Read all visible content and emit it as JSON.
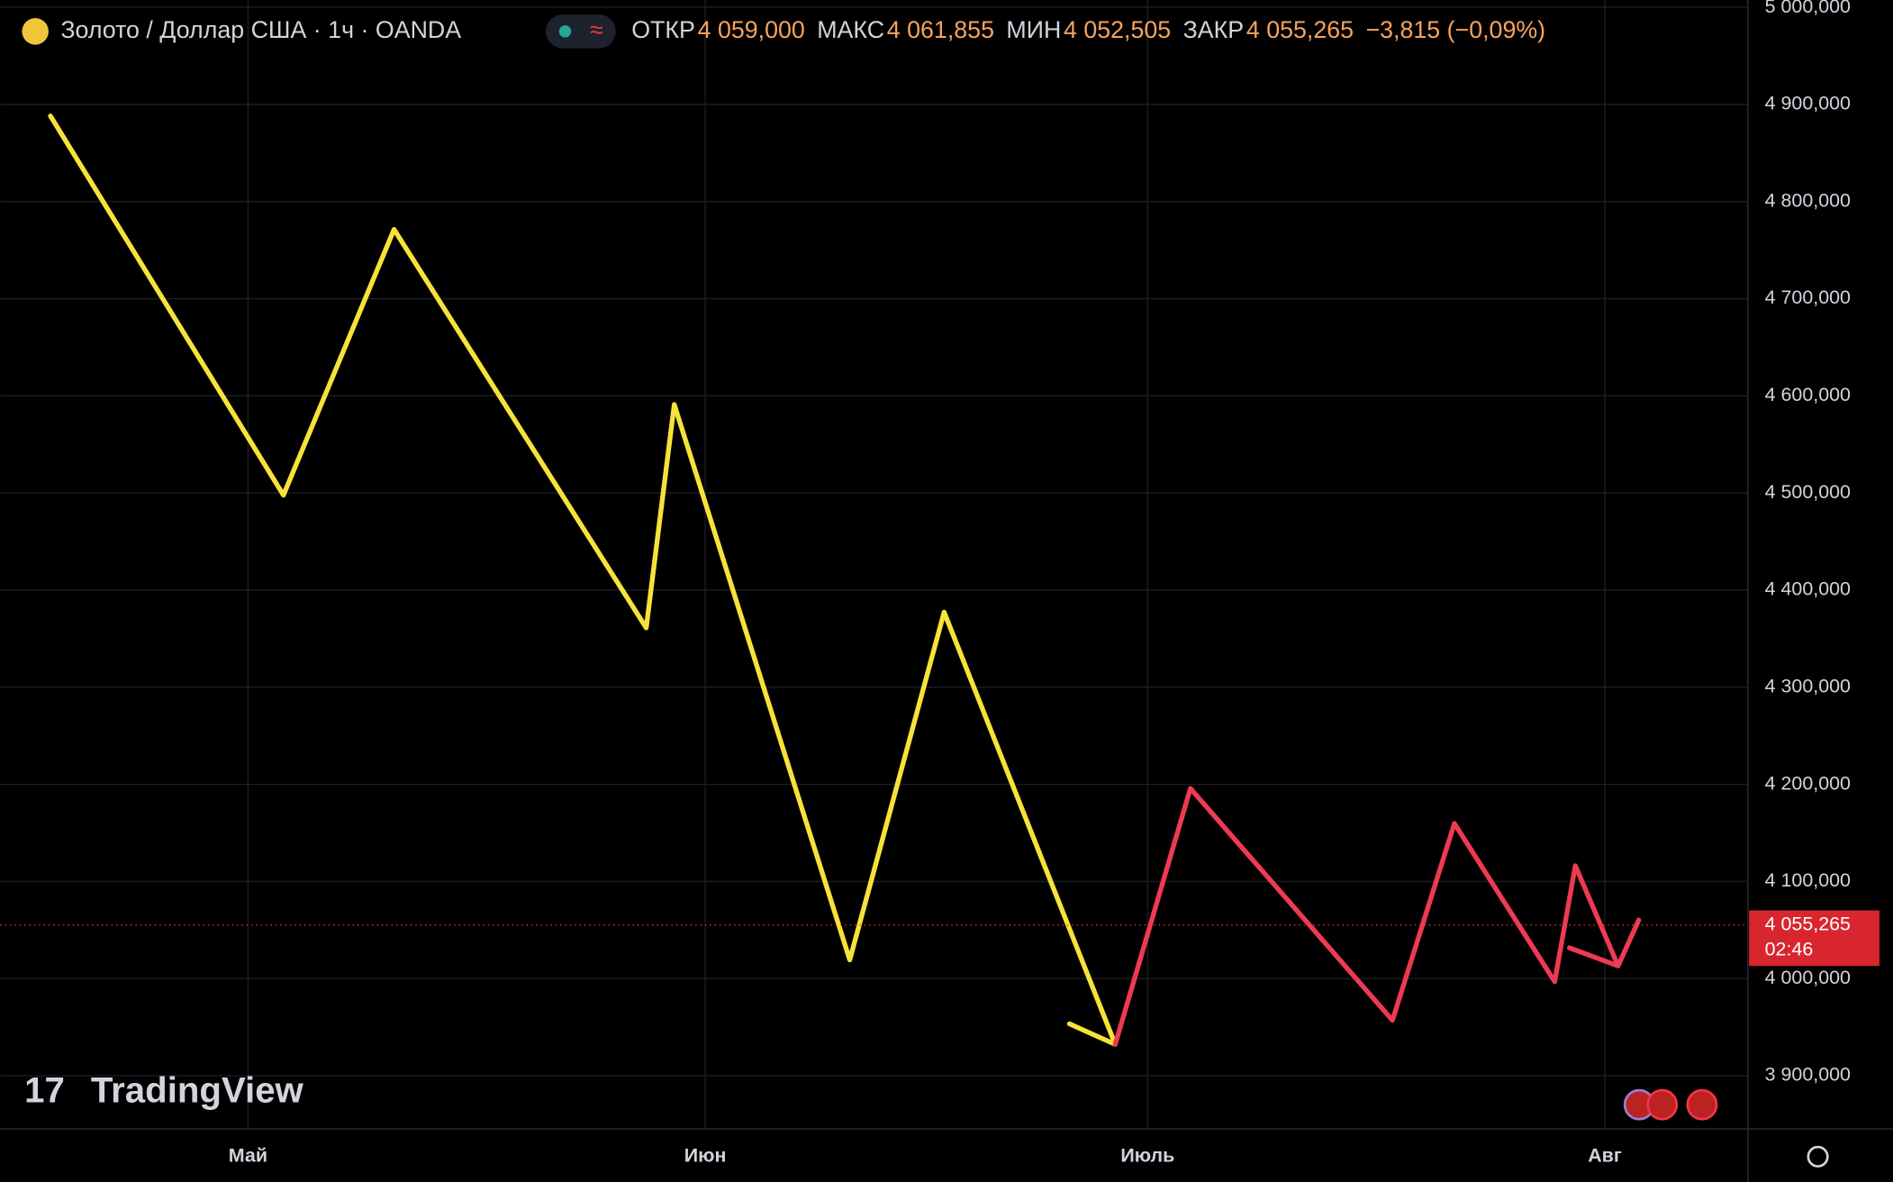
{
  "chart_data": {
    "type": "line",
    "title": "Золото / Доллар США · 1ч · OANDA",
    "stats": [
      {
        "label": "ОТКР",
        "value": "4 059,000"
      },
      {
        "label": "МАКС",
        "value": "4 061,855"
      },
      {
        "label": "МИН",
        "value": "4 052,505"
      },
      {
        "label": "ЗАКР",
        "value": "4 055,265"
      }
    ],
    "change": "−3,815 (−0,09%)",
    "watermark": "TradingView",
    "last_price": {
      "value": 4055.265,
      "label": "4 055,265"
    },
    "countdown": "02:46",
    "xlim": [
      -16.8,
      101.7
    ],
    "xticks": [
      {
        "value": 0,
        "label": "Май"
      },
      {
        "value": 31,
        "label": "Июн"
      },
      {
        "value": 61,
        "label": "Июль"
      },
      {
        "value": 92,
        "label": "Авг"
      }
    ],
    "ylim": [
      3845.3,
      5007.5
    ],
    "yticks": [
      {
        "value": 3900,
        "label": "3 900,000"
      },
      {
        "value": 4000,
        "label": "4 000,000"
      },
      {
        "value": 4100,
        "label": "4 100,000"
      },
      {
        "value": 4200,
        "label": "4 200,000"
      },
      {
        "value": 4300,
        "label": "4 300,000"
      },
      {
        "value": 4400,
        "label": "4 400,000"
      },
      {
        "value": 4500,
        "label": "4 500,000"
      },
      {
        "value": 4600,
        "label": "4 600,000"
      },
      {
        "value": 4700,
        "label": "4 700,000"
      },
      {
        "value": 4800,
        "label": "4 800,000"
      },
      {
        "value": 4900,
        "label": "4 900,000"
      },
      {
        "value": 5000,
        "label": "5 000,000"
      }
    ],
    "grid": true,
    "series": [
      {
        "color": "#f7e23a",
        "x": [
          -13.4,
          2.4,
          9.9,
          27.0,
          28.9,
          40.8,
          47.2,
          58.8,
          55.7
        ],
        "values": [
          4888.1,
          4497.8,
          4771.3,
          4361.1,
          4591.0,
          4019.3,
          4377.3,
          3932.3,
          3953.4
        ]
      },
      {
        "color": "#ee3a52",
        "x": [
          58.8,
          63.9,
          77.6,
          81.8,
          88.6,
          90.0,
          92.9,
          94.3,
          null,
          89.6,
          92.9
        ],
        "values": [
          3932.3,
          4195.8,
          3957.1,
          4159.7,
          3996.9,
          4116.2,
          4013.1,
          4060.3,
          null,
          4031.7,
          4013.1
        ]
      }
    ]
  }
}
